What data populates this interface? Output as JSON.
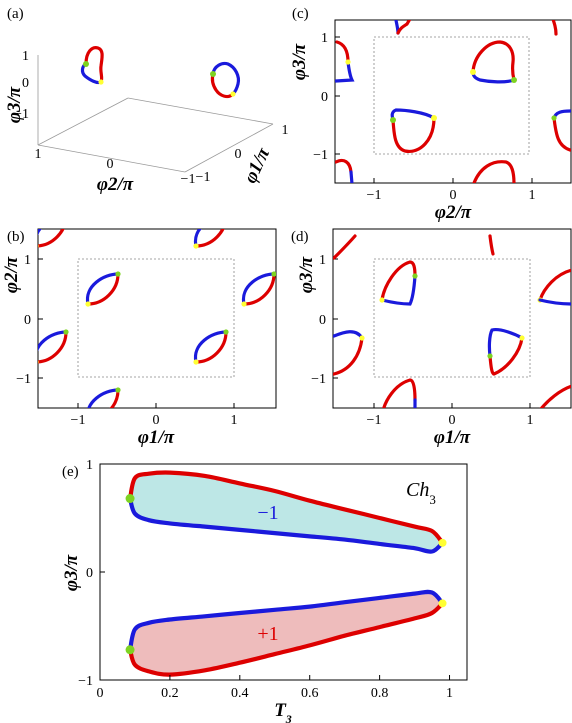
{
  "colors": {
    "positive_branch": "#dd0000",
    "negative_branch": "#1a1adc",
    "green_dot": "#7ed321",
    "yellow_dot": "#ffff33",
    "fill_minus": "#bde7e6",
    "fill_plus": "#eebcbc"
  },
  "panels": {
    "a": {
      "label": "(a)",
      "zlabel": "φ3/π",
      "ylabel": "φ2/π",
      "xlabel": "φ1/π",
      "zticks": [
        "1",
        "0",
        "−1"
      ],
      "yticks": [
        "1",
        "0",
        "−1"
      ],
      "xticks": [
        "1",
        "0",
        "−1"
      ]
    },
    "c": {
      "label": "(c)",
      "xlabel": "φ2/π",
      "ylabel": "φ3/π",
      "xticks": [
        "−1",
        "0",
        "1"
      ],
      "yticks": [
        "1",
        "0",
        "−1"
      ]
    },
    "b": {
      "label": "(b)",
      "xlabel": "φ1/π",
      "ylabel": "φ2/π",
      "xticks": [
        "−1",
        "0",
        "1"
      ],
      "yticks": [
        "1",
        "0",
        "−1"
      ]
    },
    "d": {
      "label": "(d)",
      "xlabel": "φ1/π",
      "ylabel": "φ3/π",
      "xticks": [
        "−1",
        "0",
        "1"
      ],
      "yticks": [
        "1",
        "0",
        "−1"
      ]
    },
    "e": {
      "label": "(e)",
      "xlabel": "T3",
      "ylabel": "φ3/π",
      "annotation": "Ch3",
      "xticks": [
        "0",
        "0.2",
        "0.4",
        "0.6",
        "0.8",
        "1"
      ],
      "yticks": [
        "1",
        "0",
        "−1"
      ],
      "region_labels": [
        "−1",
        "+1"
      ]
    }
  },
  "chart_data": [
    {
      "panel": "e",
      "type": "area",
      "xlabel": "T3",
      "ylabel": "φ3/π",
      "xlim": [
        0,
        1.05
      ],
      "ylim": [
        -1,
        1
      ],
      "annotation": "Ch3",
      "regions": [
        {
          "label": "−1",
          "upper_boundary": {
            "x": [
              0.086,
              0.1,
              0.14,
              0.2,
              0.3,
              0.4,
              0.5,
              0.6,
              0.7,
              0.8,
              0.9,
              0.95,
              0.98
            ],
            "y": [
              0.68,
              0.87,
              0.91,
              0.92,
              0.89,
              0.82,
              0.75,
              0.66,
              0.58,
              0.5,
              0.42,
              0.38,
              0.27
            ]
          },
          "lower_boundary": {
            "x": [
              0.086,
              0.1,
              0.14,
              0.2,
              0.3,
              0.4,
              0.5,
              0.6,
              0.7,
              0.8,
              0.9,
              0.95,
              0.98
            ],
            "y": [
              0.68,
              0.54,
              0.48,
              0.45,
              0.42,
              0.39,
              0.36,
              0.33,
              0.3,
              0.26,
              0.22,
              0.19,
              0.27
            ]
          }
        },
        {
          "label": "+1",
          "upper_boundary": {
            "x": [
              0.086,
              0.1,
              0.14,
              0.2,
              0.3,
              0.4,
              0.5,
              0.6,
              0.7,
              0.8,
              0.9,
              0.95,
              0.98
            ],
            "y": [
              -0.72,
              -0.53,
              -0.47,
              -0.44,
              -0.41,
              -0.38,
              -0.35,
              -0.32,
              -0.28,
              -0.24,
              -0.2,
              -0.19,
              -0.29
            ]
          },
          "lower_boundary": {
            "x": [
              0.086,
              0.1,
              0.14,
              0.2,
              0.3,
              0.4,
              0.5,
              0.6,
              0.7,
              0.8,
              0.9,
              0.95,
              0.98
            ],
            "y": [
              -0.72,
              -0.86,
              -0.92,
              -0.95,
              -0.91,
              -0.84,
              -0.76,
              -0.68,
              -0.59,
              -0.51,
              -0.43,
              -0.38,
              -0.29
            ]
          }
        }
      ],
      "markers": [
        {
          "color": "green",
          "x": 0.086,
          "y": 0.68
        },
        {
          "color": "yellow",
          "x": 0.98,
          "y": 0.27
        },
        {
          "color": "green",
          "x": 0.086,
          "y": -0.72
        },
        {
          "color": "yellow",
          "x": 0.98,
          "y": -0.29
        }
      ]
    },
    {
      "panel": "b",
      "type": "line",
      "xlabel": "φ1/π",
      "ylabel": "φ2/π",
      "xlim": [
        -1.5,
        1.5
      ],
      "ylim": [
        -1.5,
        1.5
      ],
      "dashed_box": [
        -1,
        1
      ],
      "loops": [
        {
          "center": [
            -0.55,
            0.55
          ],
          "orientation": "up"
        },
        {
          "center": [
            0.45,
            -0.45
          ],
          "orientation": "up"
        },
        {
          "center": [
            -1.55,
            -0.45
          ],
          "orientation": "up"
        },
        {
          "center": [
            1.45,
            0.55
          ],
          "orientation": "up"
        },
        {
          "center": [
            -0.55,
            -1.45
          ],
          "orientation": "up"
        },
        {
          "center": [
            0.45,
            1.55
          ],
          "orientation": "up"
        },
        {
          "center": [
            -1.55,
            1.55
          ],
          "orientation": "up"
        }
      ]
    },
    {
      "panel": "c",
      "type": "line",
      "xlabel": "φ2/π",
      "ylabel": "φ3/π",
      "xlim": [
        -1.5,
        1.5
      ],
      "ylim": [
        -1.5,
        1.5
      ],
      "dashed_box": [
        -1,
        1
      ],
      "loops": [
        {
          "center": [
            0.55,
            0.45
          ],
          "orientation": "up"
        },
        {
          "center": [
            -0.55,
            -0.45
          ],
          "orientation": "down"
        }
      ]
    },
    {
      "panel": "d",
      "type": "line",
      "xlabel": "φ1/π",
      "ylabel": "φ3/π",
      "xlim": [
        -1.5,
        1.5
      ],
      "ylim": [
        -1.5,
        1.5
      ],
      "dashed_box": [
        -1,
        1
      ],
      "loops": [
        {
          "center": [
            -0.55,
            0.45
          ],
          "orientation": "up"
        },
        {
          "center": [
            0.45,
            -0.45
          ],
          "orientation": "down"
        }
      ]
    }
  ]
}
